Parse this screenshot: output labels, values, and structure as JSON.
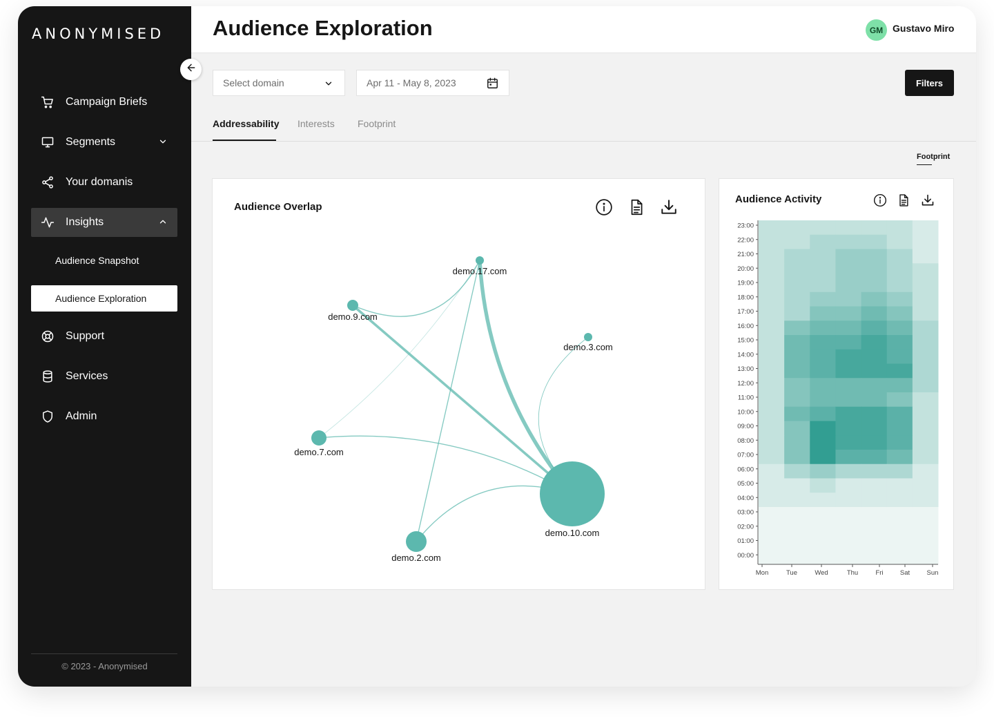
{
  "app": {
    "logo": "ANONYMISED"
  },
  "sidebar": {
    "items": [
      {
        "label": "Campaign Briefs",
        "icon": "cart-icon"
      },
      {
        "label": "Segments",
        "icon": "monitor-icon"
      },
      {
        "label": "Your domanis",
        "icon": "share-icon"
      },
      {
        "label": "Insights",
        "icon": "activity-icon"
      },
      {
        "label": "Support",
        "icon": "lifebuoy-icon"
      },
      {
        "label": "Services",
        "icon": "database-icon"
      },
      {
        "label": "Admin",
        "icon": "shield-icon"
      }
    ],
    "sub_items": [
      {
        "label": "Audience Snapshot"
      },
      {
        "label": "Audience Exploration"
      }
    ],
    "copyright": "© 2023 - Anonymised"
  },
  "header": {
    "title": "Audience Exploration",
    "user": {
      "initials": "GM",
      "name": "Gustavo Miro"
    }
  },
  "toolbar": {
    "domain_select": "Select domain",
    "date_range": "Apr 11 - May 8, 2023",
    "filters_label": "Filters"
  },
  "tabs": [
    {
      "label": "Addressability"
    },
    {
      "label": "Interests"
    },
    {
      "label": "Footprint"
    }
  ],
  "footprint_link": "Footprint",
  "overlap_card": {
    "title": "Audience Overlap"
  },
  "activity_card": {
    "title": "Audience Activity"
  },
  "colors": {
    "accent": "#5cb8ae",
    "dark": "#161616"
  },
  "chart_data": [
    {
      "type": "network",
      "title": "Audience Overlap",
      "nodes": [
        {
          "id": "demo.17.com",
          "size": 1
        },
        {
          "id": "demo.9.com",
          "size": 2
        },
        {
          "id": "demo.3.com",
          "size": 1
        },
        {
          "id": "demo.7.com",
          "size": 3
        },
        {
          "id": "demo.10.com",
          "size": 10
        },
        {
          "id": "demo.2.com",
          "size": 4
        }
      ],
      "edges": [
        {
          "source": "demo.17.com",
          "target": "demo.10.com",
          "weight": 6
        },
        {
          "source": "demo.9.com",
          "target": "demo.10.com",
          "weight": 4
        },
        {
          "source": "demo.9.com",
          "target": "demo.17.com",
          "weight": 1.5
        },
        {
          "source": "demo.7.com",
          "target": "demo.17.com",
          "weight": 1
        },
        {
          "source": "demo.7.com",
          "target": "demo.10.com",
          "weight": 1.5
        },
        {
          "source": "demo.2.com",
          "target": "demo.17.com",
          "weight": 1.5
        },
        {
          "source": "demo.2.com",
          "target": "demo.10.com",
          "weight": 1.5
        },
        {
          "source": "demo.3.com",
          "target": "demo.10.com",
          "weight": 1
        }
      ]
    },
    {
      "type": "heatmap",
      "title": "Audience Activity",
      "x": [
        "Mon",
        "Tue",
        "Wed",
        "Thu",
        "Fri",
        "Sat",
        "Sun"
      ],
      "y": [
        "23:00",
        "22:00",
        "21:00",
        "20:00",
        "19:00",
        "18:00",
        "17:00",
        "16:00",
        "15:00",
        "14:00",
        "13:00",
        "12:00",
        "11:00",
        "10:00",
        "09:00",
        "08:00",
        "07:00",
        "06:00",
        "05:00",
        "04:00",
        "03:00",
        "02:00",
        "01:00",
        "00:00"
      ],
      "values": [
        [
          2,
          2,
          2,
          2,
          2,
          2,
          1
        ],
        [
          2,
          2,
          3,
          3,
          3,
          2,
          1
        ],
        [
          2,
          3,
          3,
          4,
          4,
          3,
          1
        ],
        [
          2,
          3,
          3,
          4,
          4,
          3,
          2
        ],
        [
          2,
          3,
          3,
          4,
          4,
          3,
          2
        ],
        [
          2,
          3,
          4,
          4,
          5,
          4,
          2
        ],
        [
          2,
          3,
          5,
          5,
          6,
          5,
          2
        ],
        [
          2,
          5,
          6,
          6,
          7,
          6,
          3
        ],
        [
          2,
          6,
          7,
          7,
          8,
          7,
          3
        ],
        [
          2,
          6,
          7,
          8,
          8,
          7,
          3
        ],
        [
          2,
          6,
          7,
          8,
          8,
          8,
          3
        ],
        [
          2,
          5,
          6,
          6,
          6,
          6,
          3
        ],
        [
          2,
          5,
          6,
          6,
          6,
          5,
          2
        ],
        [
          2,
          6,
          7,
          8,
          8,
          7,
          2
        ],
        [
          2,
          5,
          9,
          8,
          8,
          7,
          2
        ],
        [
          2,
          5,
          9,
          8,
          8,
          7,
          2
        ],
        [
          2,
          5,
          9,
          7,
          7,
          6,
          2
        ],
        [
          1,
          3,
          4,
          3,
          3,
          3,
          1
        ],
        [
          1,
          1,
          2,
          1,
          1,
          1,
          1
        ],
        [
          1,
          1,
          1,
          1,
          1,
          1,
          1
        ],
        [
          0,
          0,
          0,
          0,
          0,
          0,
          0
        ],
        [
          0,
          0,
          0,
          0,
          0,
          0,
          0
        ],
        [
          0,
          0,
          0,
          0,
          0,
          0,
          0
        ],
        [
          0,
          0,
          0,
          0,
          0,
          0,
          0
        ]
      ]
    }
  ]
}
